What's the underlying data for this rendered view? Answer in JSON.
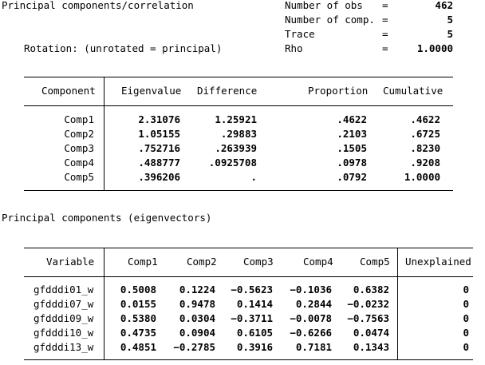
{
  "header": {
    "title": "Principal components/correlation",
    "rotation": "Rotation: (unrotated = principal)",
    "stats": [
      {
        "label": "Number of obs",
        "eq": "=",
        "value": "462"
      },
      {
        "label": "Number of comp.",
        "eq": "=",
        "value": "5"
      },
      {
        "label": "Trace",
        "eq": "=",
        "value": "5"
      },
      {
        "label": "Rho",
        "eq": "=",
        "value": "1.0000"
      }
    ]
  },
  "eig_table": {
    "columns": [
      "Component",
      "Eigenvalue",
      "Difference",
      "Proportion",
      "Cumulative"
    ],
    "rows": [
      [
        "Comp1",
        "2.31076",
        "1.25921",
        ".4622",
        ".4622"
      ],
      [
        "Comp2",
        "1.05155",
        ".29883",
        ".2103",
        ".6725"
      ],
      [
        "Comp3",
        ".752716",
        ".263939",
        ".1505",
        ".8230"
      ],
      [
        "Comp4",
        ".488777",
        ".0925708",
        ".0978",
        ".9208"
      ],
      [
        "Comp5",
        ".396206",
        ".",
        ".0792",
        "1.0000"
      ]
    ]
  },
  "eigvec_title": "Principal components (eigenvectors)",
  "vec_table": {
    "columns": [
      "Variable",
      "Comp1",
      "Comp2",
      "Comp3",
      "Comp4",
      "Comp5",
      "Unexplained"
    ],
    "rows": [
      [
        "gfdddi01_w",
        "0.5008",
        "0.1224",
        "-0.5623",
        "-0.1036",
        "0.6382",
        "0"
      ],
      [
        "gfdddi07_w",
        "0.0155",
        "0.9478",
        "0.1414",
        "0.2844",
        "-0.0232",
        "0"
      ],
      [
        "gfdddi09_w",
        "0.5380",
        "0.0304",
        "-0.3711",
        "-0.0078",
        "-0.7563",
        "0"
      ],
      [
        "gfdddi10_w",
        "0.4735",
        "0.0904",
        "0.6105",
        "-0.6266",
        "0.0474",
        "0"
      ],
      [
        "gfdddi13_w",
        "0.4851",
        "-0.2785",
        "0.3916",
        "0.7181",
        "0.1343",
        "0"
      ]
    ]
  }
}
